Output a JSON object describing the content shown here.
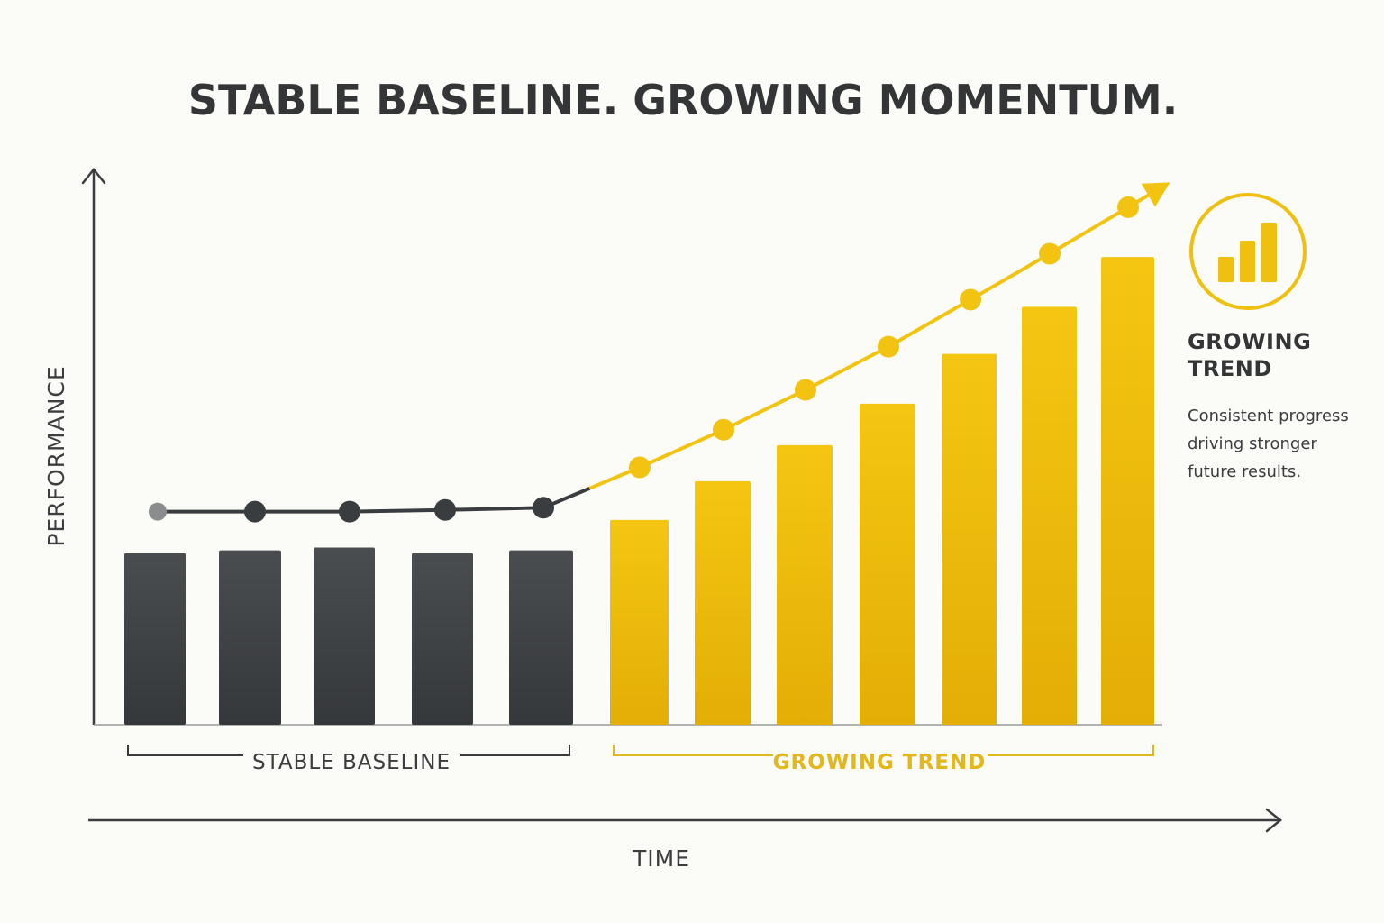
{
  "colors": {
    "background": "#fbfbf8",
    "baseline": "#3a3d40",
    "baseline_light": "#4a4d50",
    "trend": "#f2c311",
    "trend_dark": "#e2ad05",
    "text": "#333537"
  },
  "chart_data": {
    "type": "bar",
    "title": "STABLE BASELINE. GROWING MOMENTUM.",
    "xlabel": "TIME",
    "ylabel": "PERFORMANCE",
    "ylim": [
      0,
      100
    ],
    "grid": false,
    "values": [
      31,
      31.5,
      32,
      31,
      31.5,
      37,
      44,
      50.5,
      58,
      67,
      75.5,
      84.5
    ],
    "groups": [
      {
        "label": "STABLE BASELINE",
        "start": 0,
        "end": 4,
        "style": "baseline"
      },
      {
        "label": "GROWING TREND",
        "start": 5,
        "end": 11,
        "style": "trend"
      }
    ],
    "line": {
      "values": [
        38.5,
        38.5,
        38.5,
        38.8,
        39.2,
        46.5,
        53.3,
        60.5,
        68.3,
        76.8,
        85.1,
        93.5
      ],
      "arrow_end": true
    }
  },
  "side_panel": {
    "icon": "bar-chart-icon",
    "heading_line1": "GROWING",
    "heading_line2": "TREND",
    "text_line1": "Consistent progress",
    "text_line2": "driving stronger",
    "text_line3": "future results."
  }
}
